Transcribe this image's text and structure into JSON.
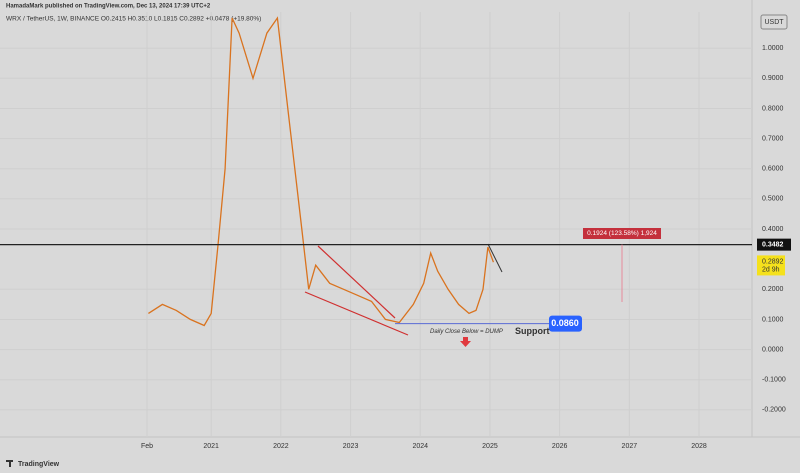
{
  "chart_data": {
    "type": "line",
    "header": "HamadaMark published on TradingView.com, Dec 13, 2024 17:39 UTC+2",
    "symbol_info": "WRX / TetherUS, 1W, BINANCE  O0.2415 H0.3510 L0.1815 C0.2892 +0.0478 (+19.80%)",
    "currency": "USDT",
    "brand": "TradingView",
    "color": "#d9731f",
    "x": [
      2020.1,
      2020.3,
      2020.5,
      2020.7,
      2020.9,
      2021.0,
      2021.1,
      2021.2,
      2021.3,
      2021.4,
      2021.6,
      2021.8,
      2021.95,
      2022.1,
      2022.2,
      2022.3,
      2022.4,
      2022.5,
      2022.7,
      2022.9,
      2023.1,
      2023.3,
      2023.5,
      2023.7,
      2023.9,
      2024.05,
      2024.15,
      2024.25,
      2024.4,
      2024.55,
      2024.7,
      2024.8,
      2024.9,
      2024.97,
      2025.05
    ],
    "values": [
      0.12,
      0.15,
      0.13,
      0.1,
      0.08,
      0.12,
      0.35,
      0.6,
      1.1,
      1.05,
      0.9,
      1.05,
      1.1,
      0.8,
      0.6,
      0.4,
      0.2,
      0.28,
      0.22,
      0.2,
      0.18,
      0.16,
      0.1,
      0.09,
      0.15,
      0.22,
      0.32,
      0.26,
      0.2,
      0.15,
      0.12,
      0.13,
      0.2,
      0.34,
      0.29
    ],
    "xlim": [
      2017.97,
      2028.76
    ],
    "xticks": [
      {
        "value": 2020.08,
        "label": "Feb"
      },
      2021,
      2022,
      2023,
      2024,
      2025,
      2026,
      2027,
      2028
    ],
    "ylim": [
      -0.29,
      1.12
    ],
    "yticks": [
      {
        "value": 1,
        "label": "1.0000"
      },
      {
        "value": 0.9,
        "label": "0.9000"
      },
      {
        "value": 0.8,
        "label": "0.8000"
      },
      {
        "value": 0.7,
        "label": "0.7000"
      },
      {
        "value": 0.6,
        "label": "0.6000"
      },
      {
        "value": 0.5,
        "label": "0.5000"
      },
      {
        "value": 0.4,
        "label": "0.4000"
      },
      {
        "value": 0.2,
        "label": "0.2000"
      },
      {
        "value": 0.1,
        "label": "0.1000"
      },
      {
        "value": 0,
        "label": "0.0000"
      },
      {
        "value": -0.1,
        "label": "-0.1000"
      },
      {
        "value": -0.2,
        "label": "-0.2000"
      }
    ],
    "grid": true,
    "resistance": 0.3482,
    "last_price": {
      "value": 0.2892,
      "countdown": "2d 9h"
    },
    "support": {
      "value": 0.086,
      "label": "0.0860",
      "text": "Support"
    },
    "measure_label": "0.1924 (123.58%) 1,924",
    "annotation": "Daily Close Below = DUMP"
  }
}
